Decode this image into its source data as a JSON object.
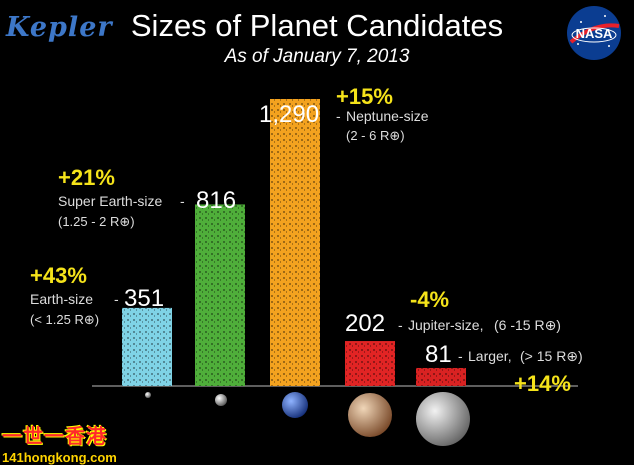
{
  "header": {
    "logo_text": "Kepler",
    "title": "Sizes of Planet Candidates",
    "subtitle": "As of January 7, 2013",
    "nasa_text": "NASA"
  },
  "watermark": {
    "line1": "一世一香港",
    "line2": "141hongkong.com"
  },
  "chart_data": {
    "type": "bar",
    "title": "Sizes of Planet Candidates",
    "subtitle": "As of January 7, 2013",
    "categories": [
      "Earth-size",
      "Super Earth-size",
      "Neptune-size",
      "Jupiter-size,",
      "Larger,"
    ],
    "values": [
      351,
      816,
      1290,
      202,
      81
    ],
    "value_labels": [
      "351",
      "816",
      "1,290",
      "202",
      "81"
    ],
    "changes": [
      "+43%",
      "+21%",
      "+15%",
      "-4%",
      "+14%"
    ],
    "ranges": [
      "(< 1.25 R⊕)",
      "(1.25 - 2 R⊕)",
      "(2 - 6 R⊕)",
      "(6 -15 R⊕)",
      "(> 15 R⊕)"
    ],
    "colors": [
      "#7fd3e6",
      "#4fae3a",
      "#f3a21f",
      "#e12424",
      "#d92222"
    ],
    "accent_color": "#f5e31a",
    "ylim": [
      0,
      1290
    ],
    "grid": false,
    "legend": "none"
  }
}
